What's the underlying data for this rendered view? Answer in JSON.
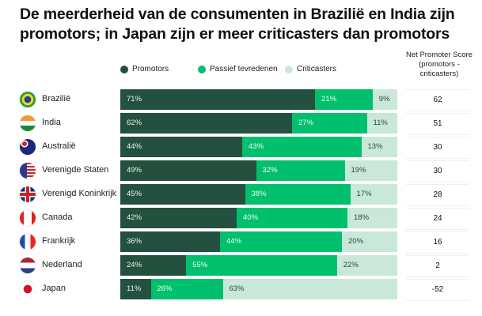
{
  "title": "De meerderheid van de consumenten in Brazilië en India zijn promotors; in Japan zijn er meer criticasters dan promotors",
  "nps_header": "Net Promoter Score (promotors - criticasters)",
  "colors": {
    "promotors": "#24513f",
    "passief": "#00c06e",
    "criticasters": "#c9e8d9"
  },
  "chart_data": {
    "type": "bar",
    "stacked": true,
    "orientation": "horizontal",
    "title": "De meerderheid van de consumenten in Brazilië en India zijn promotors; in Japan zijn er meer criticasters dan promotors",
    "legend": [
      "Promotors",
      "Passief tevredenen",
      "Criticasters"
    ],
    "legend_position": "top",
    "categories": [
      "Brazilië",
      "India",
      "Australië",
      "Verenigde Staten",
      "Verenigd Koninkrijk",
      "Canada",
      "Frankrijk",
      "Nederland",
      "Japan"
    ],
    "flags": [
      "brazil-flag-icon",
      "india-flag-icon",
      "australia-flag-icon",
      "usa-flag-icon",
      "uk-flag-icon",
      "canada-flag-icon",
      "france-flag-icon",
      "netherlands-flag-icon",
      "japan-flag-icon"
    ],
    "series": [
      {
        "name": "Promotors",
        "values": [
          71,
          62,
          44,
          49,
          45,
          42,
          36,
          24,
          11
        ],
        "labels": [
          "71%",
          "62%",
          "44%",
          "49%",
          "45%",
          "42%",
          "36%",
          "24%",
          "11%"
        ]
      },
      {
        "name": "Passief tevredenen",
        "values": [
          21,
          27,
          43,
          32,
          38,
          40,
          44,
          55,
          26
        ],
        "labels": [
          "21%",
          "27%",
          "43%",
          "32%",
          "38%",
          "40%",
          "44%",
          "55%",
          "26%"
        ]
      },
      {
        "name": "Criticasters",
        "values": [
          9,
          11,
          13,
          19,
          17,
          18,
          20,
          22,
          63
        ],
        "labels": [
          "9%",
          "11%",
          "13%",
          "19%",
          "17%",
          "18%",
          "20%",
          "22%",
          "63%"
        ]
      }
    ],
    "nps": [
      "62",
      "51",
      "30",
      "30",
      "28",
      "24",
      "16",
      "2",
      "-52"
    ]
  }
}
